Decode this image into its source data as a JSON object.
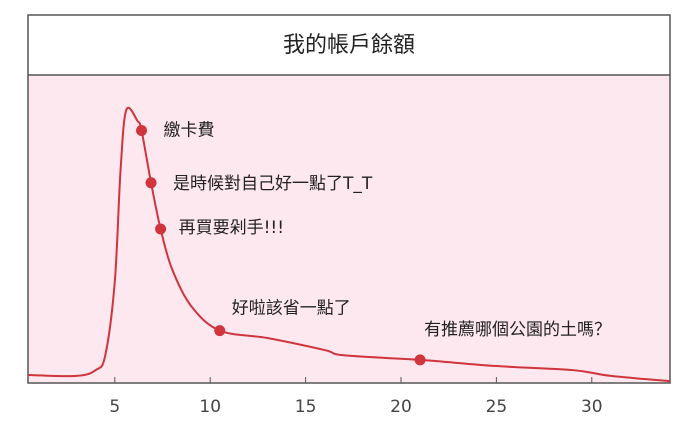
{
  "chart_data": {
    "type": "line",
    "title": "我的帳戶餘額",
    "x": [
      0.45,
      3,
      4,
      4.5,
      5,
      5.3,
      5.6,
      6.2,
      6.4,
      6.9,
      7.4,
      8,
      9,
      10.5,
      13,
      16,
      17,
      21,
      25,
      29,
      31,
      34.1
    ],
    "series": [
      {
        "color": "#d0343c",
        "values": [
          2.6,
          2.3,
          4.2,
          9,
          33,
          69,
          88.6,
          85,
          82,
          65,
          50,
          37,
          25,
          17,
          14.6,
          10.7,
          9,
          7.5,
          5.5,
          4.2,
          2.3,
          0.6
        ]
      }
    ],
    "xlim": [
      0.45,
      34.1
    ],
    "xticks": [
      5,
      10,
      15,
      20,
      25,
      30
    ],
    "ylim": [
      0,
      100
    ],
    "annotations": [
      {
        "label": "繳卡費",
        "x": 6.4,
        "y": 82
      },
      {
        "label": "是時候對自己好一點了T_T",
        "x": 6.9,
        "y": 65
      },
      {
        "label": "再買要剁手!!!",
        "x": 7.4,
        "y": 50
      },
      {
        "label": "好啦該省一點了",
        "x": 10.5,
        "y": 17
      },
      {
        "label": "有推薦哪個公園的土嗎？",
        "x": 21,
        "y": 7.5
      }
    ]
  }
}
